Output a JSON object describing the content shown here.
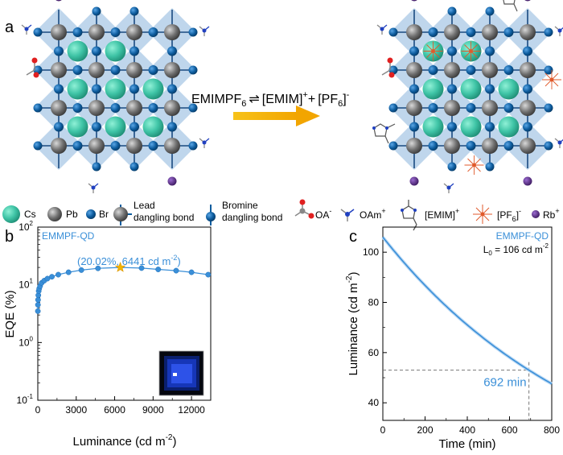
{
  "panel_labels": {
    "a": "a",
    "b": "b",
    "c": "c"
  },
  "reaction": {
    "reactant": "EMIMPF",
    "reactant_sub": "6",
    "arrow": "⇌",
    "product1": "[EMIM]",
    "product1_sup": "+",
    "plus": "+",
    "product2": "[PF",
    "product2_sub": "6",
    "product2_close": "]",
    "product2_sup": "-"
  },
  "legend": {
    "cs": "Cs",
    "pb": "Pb",
    "br": "Br",
    "lead_line1": "Lead",
    "lead_line2": "dangling bond",
    "bromine_line1": "Bromine",
    "bromine_line2": "dangling bond",
    "oa": "OA",
    "oa_sup": "-",
    "oam": "OAm",
    "oam_sup": "+",
    "emim": "[EMIM]",
    "emim_sup": "+",
    "pf6": "[PF",
    "pf6_sub": "6",
    "pf6_close": "]",
    "pf6_sup": "-",
    "rb": "Rb",
    "rb_sup": "+"
  },
  "colors": {
    "cs": "#3fc4a6",
    "pb": "#6b6b6b",
    "br": "#0d5c9e",
    "rb": "#5b2a86",
    "diamond": "#a9c8e6",
    "arrow": "#f4b400",
    "curve": "#3a8fd8",
    "pf6": "#e05a2b"
  },
  "chart_data": [
    {
      "type": "scatter",
      "legend": "EMMPF-QD",
      "annotation": "(20.02%, 6441 cd m",
      "annotation_sup": "-2",
      "annotation_close": ")",
      "xlabel": "Luminance (cd m",
      "xlabel_sup": "-2",
      "xlabel_close": ")",
      "ylabel": "EQE (%)",
      "xlim": [
        0,
        13500
      ],
      "ylim_log": [
        0.1,
        100
      ],
      "log_scale_y": true,
      "x_ticks": [
        "0",
        "3000",
        "6000",
        "9000",
        "12000"
      ],
      "x_tick_values": [
        0,
        3000,
        6000,
        9000,
        12000
      ],
      "y_ticks": [
        {
          "base": "10",
          "exp": "-1",
          "value": 0.1
        },
        {
          "base": "10",
          "exp": "0",
          "value": 1
        },
        {
          "base": "10",
          "exp": "1",
          "value": 10
        },
        {
          "base": "10",
          "exp": "2",
          "value": 100
        }
      ],
      "points": [
        [
          5,
          3.5
        ],
        [
          10,
          4.5
        ],
        [
          20,
          5.5
        ],
        [
          40,
          6.6
        ],
        [
          70,
          7.8
        ],
        [
          110,
          8.6
        ],
        [
          180,
          9.5
        ],
        [
          300,
          10.8
        ],
        [
          500,
          11.8
        ],
        [
          750,
          12.8
        ],
        [
          1100,
          13.8
        ],
        [
          1600,
          15.0
        ],
        [
          2400,
          16.5
        ],
        [
          3400,
          18.0
        ],
        [
          4700,
          19.3
        ],
        [
          6441,
          20.02
        ],
        [
          8100,
          19.5
        ],
        [
          9400,
          18.5
        ],
        [
          10800,
          17.6
        ],
        [
          12000,
          16.5
        ],
        [
          13300,
          15.0
        ]
      ],
      "star_point": [
        6441,
        20.02
      ]
    },
    {
      "type": "line",
      "legend": "EMMPF-QD",
      "l0_label": "L",
      "l0_sub": "0",
      "l0_value": " = 106 cd m",
      "l0_sup": "-2",
      "annotation": "692 min",
      "xlabel": "Time (min)",
      "ylabel": "Luminance (cd m",
      "ylabel_sup": "-2",
      "ylabel_close": ")",
      "xlim": [
        0,
        800
      ],
      "ylim": [
        33,
        110
      ],
      "x_ticks": [
        "0",
        "200",
        "400",
        "600",
        "800"
      ],
      "x_tick_values": [
        0,
        200,
        400,
        600,
        800
      ],
      "y_ticks": [
        "40",
        "60",
        "80",
        "100"
      ],
      "y_tick_values": [
        40,
        60,
        80,
        100
      ],
      "l0": 106,
      "t50": 692,
      "half_value": 53
    }
  ]
}
